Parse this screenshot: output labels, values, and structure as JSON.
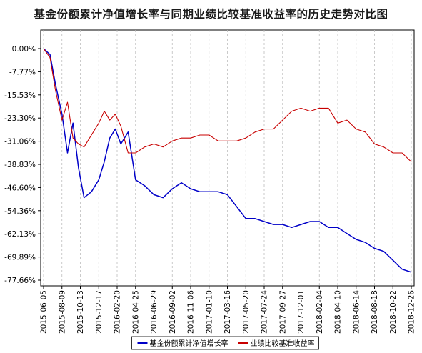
{
  "chart_data": {
    "type": "line",
    "title": "基金份额累计净值增长率与同期业绩比较基准收益率的历史走势对比图",
    "xlabel": "",
    "ylabel": "",
    "x_ticks": [
      "2015-06-05",
      "2015-08-09",
      "2015-10-13",
      "2015-12-17",
      "2016-02-20",
      "2016-04-25",
      "2016-06-29",
      "2016-09-02",
      "2016-11-06",
      "2017-01-10",
      "2017-03-16",
      "2017-05-20",
      "2017-07-24",
      "2017-09-27",
      "2017-12-01",
      "2018-02-04",
      "2018-04-10",
      "2018-06-14",
      "2018-08-18",
      "2018-10-22",
      "2018-12-26"
    ],
    "y_ticks": [
      "0.00%",
      "-7.77%",
      "-15.53%",
      "-23.30%",
      "-31.06%",
      "-38.83%",
      "-46.60%",
      "-54.36%",
      "-62.13%",
      "-69.89%",
      "-77.66%"
    ],
    "ylim": [
      -77.66,
      0
    ],
    "grid": "vertical dashed",
    "legend": "bottom-center",
    "series": [
      {
        "name": "基金份额累计净值增长率",
        "color": "#0000c8",
        "values": [
          [
            0,
            0
          ],
          [
            0.35,
            -2
          ],
          [
            0.65,
            -12
          ],
          [
            1.0,
            -22
          ],
          [
            1.3,
            -35
          ],
          [
            1.6,
            -25
          ],
          [
            1.9,
            -40
          ],
          [
            2.2,
            -50
          ],
          [
            2.6,
            -48
          ],
          [
            3.0,
            -44
          ],
          [
            3.3,
            -38
          ],
          [
            3.6,
            -30
          ],
          [
            3.9,
            -27
          ],
          [
            4.2,
            -32
          ],
          [
            4.6,
            -28
          ],
          [
            5.0,
            -44
          ],
          [
            5.5,
            -46
          ],
          [
            6.0,
            -49
          ],
          [
            6.5,
            -50
          ],
          [
            7.0,
            -47
          ],
          [
            7.5,
            -45
          ],
          [
            8.0,
            -47
          ],
          [
            8.5,
            -48
          ],
          [
            9.0,
            -48
          ],
          [
            9.5,
            -48
          ],
          [
            10.0,
            -49
          ],
          [
            10.5,
            -53
          ],
          [
            11.0,
            -57
          ],
          [
            11.5,
            -57
          ],
          [
            12.0,
            -58
          ],
          [
            12.5,
            -59
          ],
          [
            13.0,
            -59
          ],
          [
            13.5,
            -60
          ],
          [
            14.0,
            -59
          ],
          [
            14.5,
            -58
          ],
          [
            15.0,
            -58
          ],
          [
            15.5,
            -60
          ],
          [
            16.0,
            -60
          ],
          [
            16.5,
            -62
          ],
          [
            17.0,
            -64
          ],
          [
            17.5,
            -65
          ],
          [
            18.0,
            -67
          ],
          [
            18.5,
            -68
          ],
          [
            19.0,
            -71
          ],
          [
            19.5,
            -74
          ],
          [
            20.0,
            -75
          ]
        ]
      },
      {
        "name": "业绩比较基准收益率",
        "color": "#c80000",
        "values": [
          [
            0,
            0
          ],
          [
            0.35,
            -3
          ],
          [
            0.65,
            -14
          ],
          [
            1.0,
            -24
          ],
          [
            1.3,
            -18
          ],
          [
            1.6,
            -30
          ],
          [
            1.9,
            -32
          ],
          [
            2.2,
            -33
          ],
          [
            2.6,
            -29
          ],
          [
            3.0,
            -25
          ],
          [
            3.3,
            -21
          ],
          [
            3.6,
            -24
          ],
          [
            3.9,
            -22
          ],
          [
            4.2,
            -26
          ],
          [
            4.6,
            -35
          ],
          [
            5.0,
            -35
          ],
          [
            5.5,
            -33
          ],
          [
            6.0,
            -32
          ],
          [
            6.5,
            -33
          ],
          [
            7.0,
            -31
          ],
          [
            7.5,
            -30
          ],
          [
            8.0,
            -30
          ],
          [
            8.5,
            -29
          ],
          [
            9.0,
            -29
          ],
          [
            9.5,
            -31
          ],
          [
            10.0,
            -31
          ],
          [
            10.5,
            -31
          ],
          [
            11.0,
            -30
          ],
          [
            11.5,
            -28
          ],
          [
            12.0,
            -27
          ],
          [
            12.5,
            -27
          ],
          [
            13.0,
            -24
          ],
          [
            13.5,
            -21
          ],
          [
            14.0,
            -20
          ],
          [
            14.5,
            -21
          ],
          [
            15.0,
            -20
          ],
          [
            15.5,
            -20
          ],
          [
            16.0,
            -25
          ],
          [
            16.5,
            -24
          ],
          [
            17.0,
            -27
          ],
          [
            17.5,
            -28
          ],
          [
            18.0,
            -32
          ],
          [
            18.5,
            -33
          ],
          [
            19.0,
            -35
          ],
          [
            19.5,
            -35
          ],
          [
            20.0,
            -38
          ]
        ]
      }
    ]
  }
}
